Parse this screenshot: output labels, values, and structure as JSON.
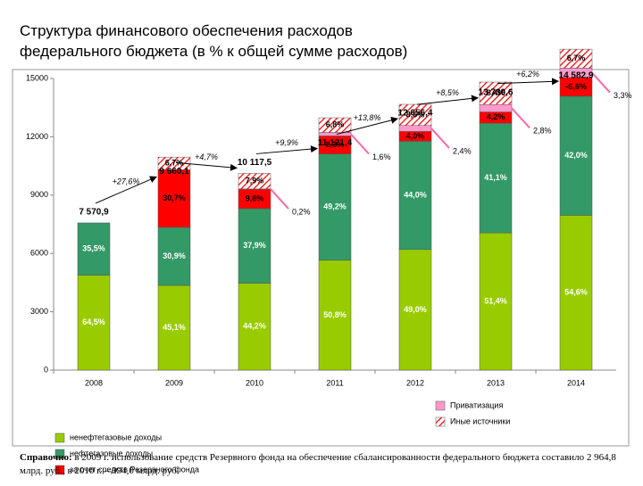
{
  "chart_data": {
    "type": "stacked_bar",
    "title": [
      "Структура финансового обеспечения расходов",
      "федерального бюджета (в % к общей сумме расходов)"
    ],
    "categories": [
      "2008",
      "2009",
      "2010",
      "2011",
      "2012",
      "2013",
      "2014"
    ],
    "ylim": [
      0,
      15000
    ],
    "yticks": [
      0,
      3000,
      6000,
      9000,
      12000,
      15000
    ],
    "totals": {
      "values": [
        7570.9,
        9660.1,
        10117.5,
        11121.4,
        12656.4,
        13730.6,
        14582.9
      ],
      "value_labels": [
        "7 570,9",
        "9 660,1",
        "10 117,5",
        "11 121,4",
        "12 656,4",
        "13 730,6",
        "14 582,9"
      ]
    },
    "growth": {
      "values": [
        27.6,
        4.7,
        9.9,
        13.8,
        8.5,
        6.2
      ],
      "value_labels": [
        "+27,6%",
        "+4,7%",
        "+9,9%",
        "+13,8%",
        "+8,5%",
        "+6,2%"
      ]
    },
    "series": [
      {
        "name": "ненефтегазовые доходы",
        "color": "#99cc00",
        "values": [
          64.5,
          45.1,
          44.2,
          50.8,
          49.0,
          51.4,
          54.6
        ],
        "value_labels": [
          "64,5%",
          "45,1%",
          "44,2%",
          "50,8%",
          "49,0%",
          "51,4%",
          "54,6%"
        ]
      },
      {
        "name": "нефтегазовые доходы",
        "color": "#339966",
        "values": [
          35.5,
          30.9,
          37.9,
          49.2,
          44.0,
          41.1,
          42.0
        ],
        "value_labels": [
          "35,5%",
          "30,9%",
          "37,9%",
          "49,2%",
          "44,0%",
          "41,1%",
          "42,0%"
        ]
      },
      {
        "name": "за счет средств Резервного фонда",
        "color": "#ff0000",
        "values": [
          null,
          30.7,
          9.8,
          8.3,
          4.0,
          4.2,
          -6.6
        ],
        "value_labels": [
          null,
          "30,7%",
          "9,8%",
          "8,3%",
          "4,0%",
          "4,2%",
          "-6,6%"
        ]
      },
      {
        "name": "Приватизация",
        "color": "#ff99cc",
        "values": [
          null,
          null,
          0.2,
          1.6,
          2.4,
          2.8,
          3.3
        ],
        "value_labels": [
          null,
          null,
          "0,2%",
          "1,6%",
          "2,4%",
          "2,8%",
          "3,3%"
        ],
        "label_position": "outside"
      },
      {
        "name": "Иные источники",
        "color": "#ff0000",
        "pattern": "hatch",
        "values": [
          null,
          6.7,
          7.9,
          6.8,
          8.6,
          8.4,
          6.7
        ],
        "value_labels": [
          null,
          "6,7%",
          "7,9%",
          "6,8%",
          "8,6%",
          "8,4%",
          "6,7%"
        ]
      }
    ],
    "note": {
      "bold": "Справочно:",
      "text": " в 2009 г. использование средств Резервного фонда на обеспечение сбалансированности федерального  бюджета составило 2 964,8 млрд. руб., в 2010 г. – 994,0 млрд. руб."
    }
  }
}
